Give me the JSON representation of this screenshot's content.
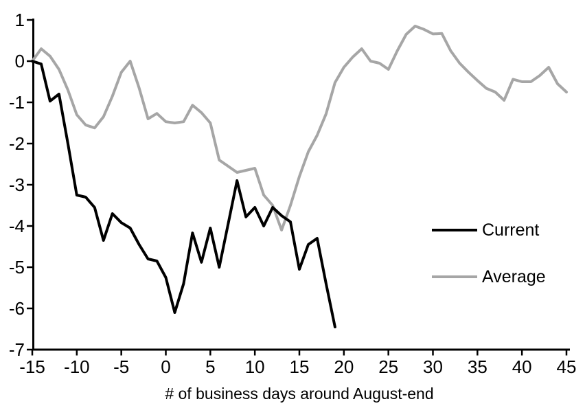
{
  "chart_data": {
    "type": "line",
    "title": "",
    "xlabel": "# of business days around August-end",
    "ylabel": "",
    "xlim": [
      -15,
      45
    ],
    "ylim": [
      -7,
      1
    ],
    "x_ticks": [
      -15,
      -10,
      -5,
      0,
      5,
      10,
      15,
      20,
      25,
      30,
      35,
      40,
      45
    ],
    "y_ticks": [
      1,
      0,
      -1,
      -2,
      -3,
      -4,
      -5,
      -6,
      -7
    ],
    "grid": false,
    "legend_position": "middle-right",
    "series": [
      {
        "name": "Average",
        "color": "#a6a6a6",
        "x": [
          -15,
          -14,
          -13,
          -12,
          -11,
          -10,
          -9,
          -8,
          -7,
          -6,
          -5,
          -4,
          -3,
          -2,
          -1,
          0,
          1,
          2,
          3,
          4,
          5,
          6,
          7,
          8,
          9,
          10,
          11,
          12,
          13,
          14,
          15,
          16,
          17,
          18,
          19,
          20,
          21,
          22,
          23,
          24,
          25,
          26,
          27,
          28,
          29,
          30,
          31,
          32,
          33,
          34,
          35,
          36,
          37,
          38,
          39,
          40,
          41,
          42,
          43,
          44,
          45
        ],
        "values": [
          0.0,
          0.3,
          0.12,
          -0.2,
          -0.7,
          -1.3,
          -1.55,
          -1.62,
          -1.35,
          -0.85,
          -0.27,
          0.0,
          -0.65,
          -1.4,
          -1.27,
          -1.47,
          -1.5,
          -1.47,
          -1.07,
          -1.25,
          -1.5,
          -2.4,
          -2.55,
          -2.7,
          -2.65,
          -2.6,
          -3.25,
          -3.5,
          -4.1,
          -3.5,
          -2.8,
          -2.2,
          -1.8,
          -1.28,
          -0.52,
          -0.15,
          0.1,
          0.3,
          0.0,
          -0.05,
          -0.2,
          0.25,
          0.65,
          0.85,
          0.77,
          0.66,
          0.67,
          0.25,
          -0.05,
          -0.27,
          -0.47,
          -0.66,
          -0.75,
          -0.95,
          -0.44,
          -0.5,
          -0.5,
          -0.35,
          -0.15,
          -0.55,
          -0.75
        ]
      },
      {
        "name": "Current",
        "color": "#000000",
        "x": [
          -15,
          -14,
          -13,
          -12,
          -11,
          -10,
          -9,
          -8,
          -7,
          -6,
          -5,
          -4,
          -3,
          -2,
          -1,
          0,
          1,
          2,
          3,
          4,
          5,
          6,
          7,
          8,
          9,
          10,
          11,
          12,
          13,
          14,
          15,
          16,
          17,
          18,
          19
        ],
        "values": [
          0.0,
          -0.07,
          -0.97,
          -0.8,
          -2.0,
          -3.25,
          -3.3,
          -3.55,
          -4.35,
          -3.7,
          -3.92,
          -4.05,
          -4.45,
          -4.8,
          -4.85,
          -5.25,
          -6.1,
          -5.4,
          -4.17,
          -4.88,
          -4.05,
          -5.0,
          -3.95,
          -2.9,
          -3.78,
          -3.55,
          -4.0,
          -3.55,
          -3.75,
          -3.9,
          -5.05,
          -4.45,
          -4.3,
          -5.4,
          -6.45
        ]
      }
    ]
  },
  "legend": {
    "items": [
      {
        "label": "Current",
        "color": "#000000"
      },
      {
        "label": "Average",
        "color": "#a6a6a6"
      }
    ]
  }
}
